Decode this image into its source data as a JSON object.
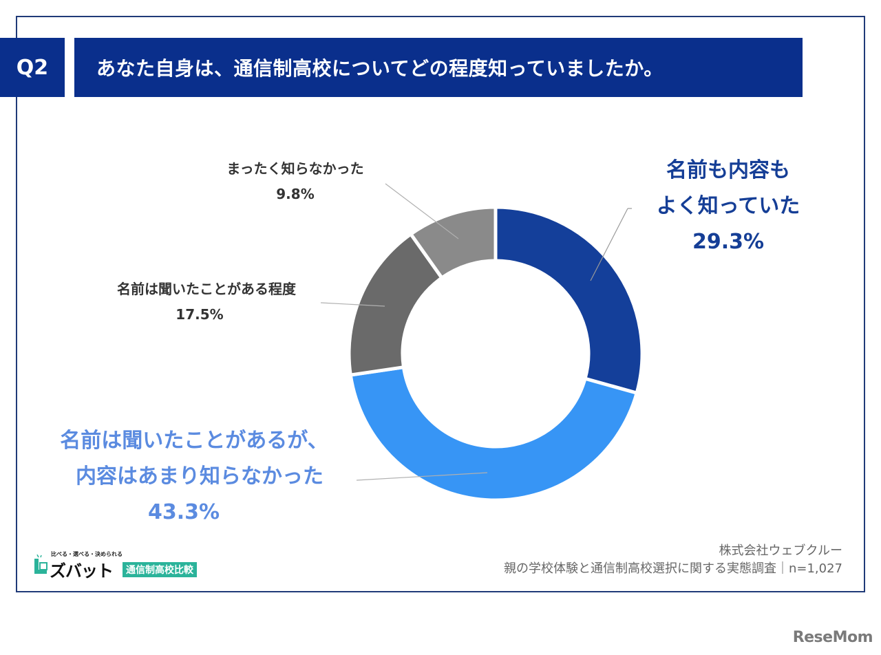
{
  "header": {
    "question_number": "Q2",
    "question_text": "あなた自身は、通信制高校についてどの程度知っていましたか。"
  },
  "chart_data": {
    "type": "pie",
    "variant": "donut",
    "title": "あなた自身は、通信制高校についてどの程度知っていましたか。",
    "categories": [
      "名前も内容もよく知っていた",
      "名前は聞いたことがあるが、内容はあまり知らなかった",
      "名前は聞いたことがある程度",
      "まったく知らなかった"
    ],
    "values": [
      29.3,
      43.3,
      17.5,
      9.8
    ],
    "unit": "%",
    "colors": [
      "#143f9a",
      "#3795f5",
      "#6a6a6a",
      "#8a8a8a"
    ],
    "start_angle": "12 o'clock, clockwise",
    "legend": "none (data labels with leader lines)"
  },
  "labels": {
    "known_well": {
      "line1": "名前も内容も",
      "line2": "よく知っていた",
      "value": "29.3%"
    },
    "heard_not_content": {
      "line1": "名前は聞いたことがあるが、",
      "line2": "内容はあまり知らなかった",
      "value": "43.3%"
    },
    "heard_only": {
      "line1": "名前は聞いたことがある程度",
      "value": "17.5%"
    },
    "not_at_all": {
      "line1": "まったく知らなかった",
      "value": "9.8%"
    }
  },
  "footer": {
    "company": "株式会社ウェブクルー",
    "survey": "親の学校体験と通信制高校選択に関する実態調査｜n=1,027"
  },
  "logo": {
    "tagline": "比べる・選べる・決められる",
    "name": "ズバット",
    "box_label": "通信制高校比較"
  },
  "watermark": "ReseMom"
}
